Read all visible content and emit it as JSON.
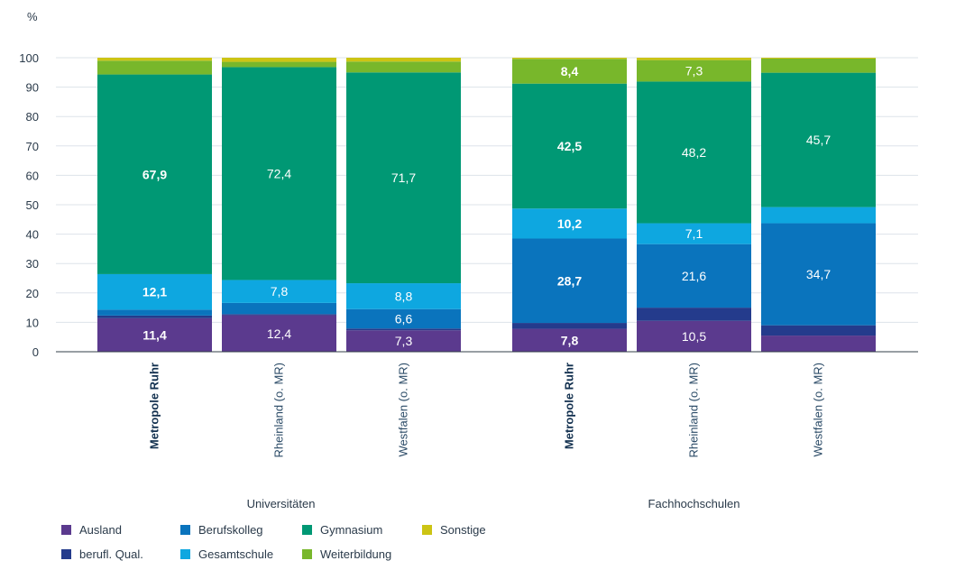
{
  "chart_data": {
    "type": "bar",
    "stacked": true,
    "ylabel": "%",
    "ylim": [
      0,
      100
    ],
    "yticks": [
      0,
      10,
      20,
      30,
      40,
      50,
      60,
      70,
      80,
      90,
      100
    ],
    "grid": true,
    "legend_position": "bottom-left",
    "groups": [
      "Universitäten",
      "Fachhochschulen"
    ],
    "categories": [
      {
        "label": "Metropole Ruhr",
        "group": 0,
        "highlight": true
      },
      {
        "label": "Rheinland (o. MR)",
        "group": 0,
        "highlight": false
      },
      {
        "label": "Westfalen (o. MR)",
        "group": 0,
        "highlight": false
      },
      {
        "label": "Metropole Ruhr",
        "group": 1,
        "highlight": true
      },
      {
        "label": "Rheinland (o. MR)",
        "group": 1,
        "highlight": false
      },
      {
        "label": "Westfalen (o. MR)",
        "group": 1,
        "highlight": false
      }
    ],
    "series": [
      {
        "name": "Ausland",
        "color": "#5b3a8e",
        "values": [
          11.4,
          12.4,
          7.3,
          7.8,
          10.5,
          5.5
        ],
        "labels": [
          "11,4",
          "12,4",
          "7,3",
          "7,8",
          "10,5",
          ""
        ]
      },
      {
        "name": "berufl. Qual.",
        "color": "#243b8c",
        "values": [
          0.9,
          0.4,
          0.6,
          2.0,
          4.5,
          3.5
        ],
        "labels": [
          "",
          "",
          "",
          "",
          "",
          ""
        ]
      },
      {
        "name": "Berufskolleg",
        "color": "#0a74bd",
        "values": [
          2.0,
          3.8,
          6.6,
          28.7,
          21.6,
          34.7
        ],
        "labels": [
          "",
          "",
          "6,6",
          "28,7",
          "21,6",
          "34,7"
        ]
      },
      {
        "name": "Gesamtschule",
        "color": "#0ea7e0",
        "values": [
          12.1,
          7.8,
          8.8,
          10.2,
          7.1,
          5.5
        ],
        "labels": [
          "12,1",
          "7,8",
          "8,8",
          "10,2",
          "7,1",
          ""
        ]
      },
      {
        "name": "Gymnasium",
        "color": "#009874",
        "values": [
          67.9,
          72.4,
          71.7,
          42.5,
          48.2,
          45.7
        ],
        "labels": [
          "67,9",
          "72,4",
          "71,7",
          "42,5",
          "48,2",
          "45,7"
        ]
      },
      {
        "name": "Weiterbildung",
        "color": "#78b72b",
        "values": [
          4.7,
          1.8,
          3.7,
          8.4,
          7.3,
          4.8
        ],
        "labels": [
          "",
          "",
          "",
          "8,4",
          "7,3",
          ""
        ]
      },
      {
        "name": "Sonstige",
        "color": "#ccc414",
        "values": [
          1.0,
          1.4,
          1.3,
          0.4,
          0.8,
          0.3
        ],
        "labels": [
          "",
          "",
          "",
          "",
          "",
          ""
        ]
      }
    ],
    "legend_order": [
      "Ausland",
      "Berufskolleg",
      "Gymnasium",
      "Sonstige",
      "berufl. Qual.",
      "Gesamtschule",
      "Weiterbildung"
    ]
  }
}
